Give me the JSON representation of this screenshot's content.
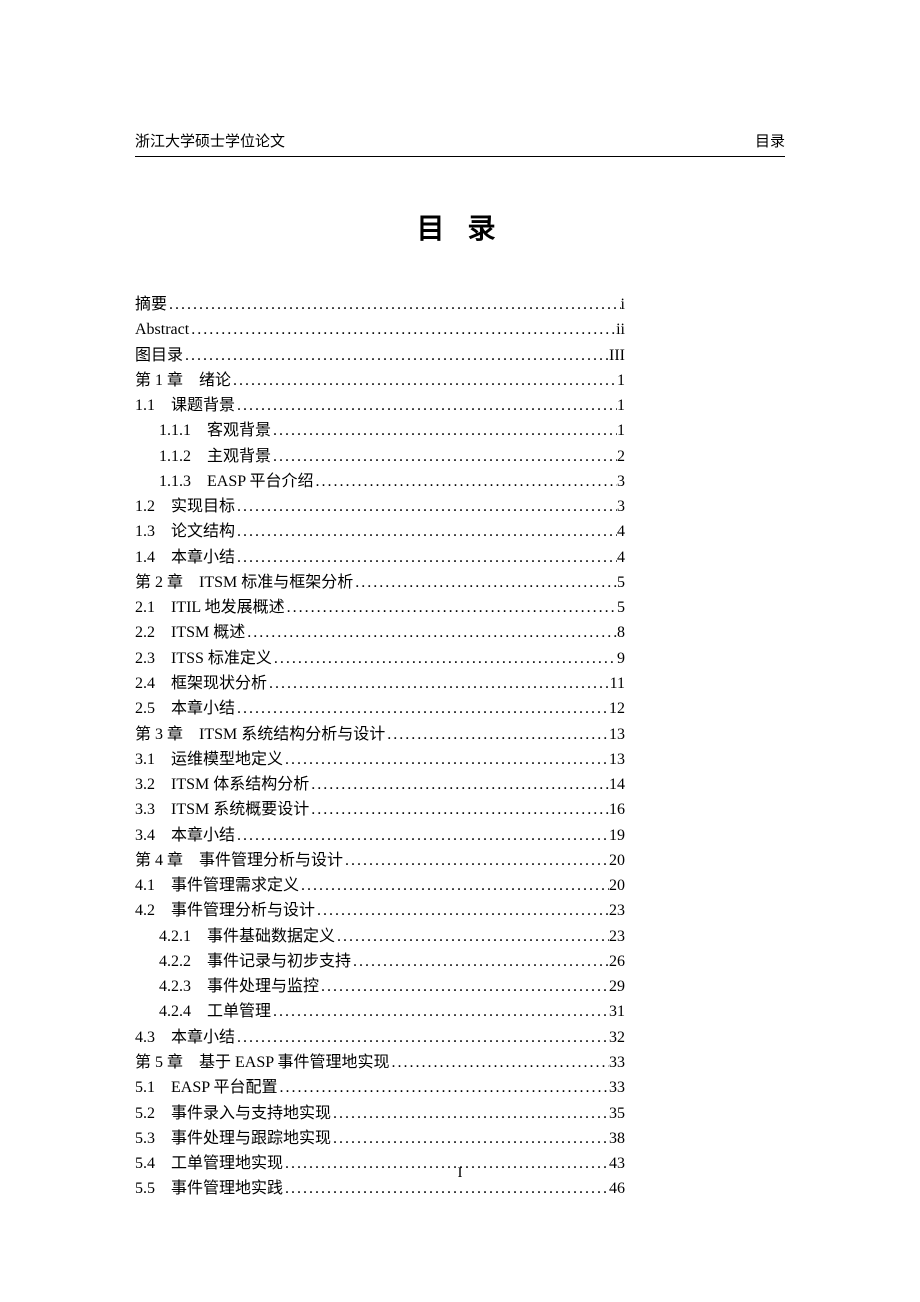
{
  "header": {
    "left": "浙江大学硕士学位论文",
    "right": "目录"
  },
  "title": "目 录",
  "pageNumber": "I",
  "toc": [
    {
      "label": "摘要",
      "page": "i",
      "indent": 0
    },
    {
      "label": "Abstract",
      "page": "ii",
      "indent": 0
    },
    {
      "label": "图目录",
      "page": "III",
      "indent": 0
    },
    {
      "label": "第 1 章 绪论",
      "page": "1",
      "indent": 0
    },
    {
      "label": "1.1 课题背景",
      "page": "1",
      "indent": 0
    },
    {
      "label": "1.1.1 客观背景",
      "page": "1",
      "indent": 1
    },
    {
      "label": "1.1.2 主观背景",
      "page": "2",
      "indent": 1
    },
    {
      "label": "1.1.3 EASP 平台介绍",
      "page": "3",
      "indent": 1
    },
    {
      "label": "1.2 实现目标",
      "page": "3",
      "indent": 0
    },
    {
      "label": "1.3 论文结构",
      "page": "4",
      "indent": 0
    },
    {
      "label": "1.4 本章小结",
      "page": "4",
      "indent": 0
    },
    {
      "label": "第 2 章 ITSM 标准与框架分析",
      "page": "5",
      "indent": 0
    },
    {
      "label": "2.1 ITIL 地发展概述",
      "page": "5",
      "indent": 0
    },
    {
      "label": "2.2 ITSM 概述",
      "page": "8",
      "indent": 0
    },
    {
      "label": "2.3 ITSS 标准定义",
      "page": "9",
      "indent": 0
    },
    {
      "label": "2.4 框架现状分析",
      "page": "11",
      "indent": 0
    },
    {
      "label": "2.5 本章小结",
      "page": "12",
      "indent": 0
    },
    {
      "label": "第 3 章 ITSM 系统结构分析与设计",
      "page": "13",
      "indent": 0
    },
    {
      "label": "3.1 运维模型地定义",
      "page": "13",
      "indent": 0
    },
    {
      "label": "3.2 ITSM 体系结构分析",
      "page": "14",
      "indent": 0
    },
    {
      "label": "3.3 ITSM 系统概要设计",
      "page": "16",
      "indent": 0
    },
    {
      "label": "3.4 本章小结",
      "page": "19",
      "indent": 0
    },
    {
      "label": "第 4 章 事件管理分析与设计",
      "page": "20",
      "indent": 0
    },
    {
      "label": "4.1 事件管理需求定义",
      "page": "20",
      "indent": 0
    },
    {
      "label": "4.2 事件管理分析与设计",
      "page": "23",
      "indent": 0
    },
    {
      "label": "4.2.1 事件基础数据定义",
      "page": "23",
      "indent": 1
    },
    {
      "label": "4.2.2 事件记录与初步支持",
      "page": "26",
      "indent": 1
    },
    {
      "label": "4.2.3 事件处理与监控",
      "page": "29",
      "indent": 1
    },
    {
      "label": "4.2.4 工单管理",
      "page": "31",
      "indent": 1
    },
    {
      "label": "4.3 本章小结",
      "page": "32",
      "indent": 0
    },
    {
      "label": "第 5 章 基于 EASP 事件管理地实现",
      "page": "33",
      "indent": 0
    },
    {
      "label": "5.1 EASP 平台配置",
      "page": "33",
      "indent": 0
    },
    {
      "label": "5.2 事件录入与支持地实现",
      "page": "35",
      "indent": 0
    },
    {
      "label": "5.3 事件处理与跟踪地实现",
      "page": "38",
      "indent": 0
    },
    {
      "label": "5.4 工单管理地实现",
      "page": "43",
      "indent": 0
    },
    {
      "label": "5.5 事件管理地实践",
      "page": "46",
      "indent": 0
    }
  ]
}
